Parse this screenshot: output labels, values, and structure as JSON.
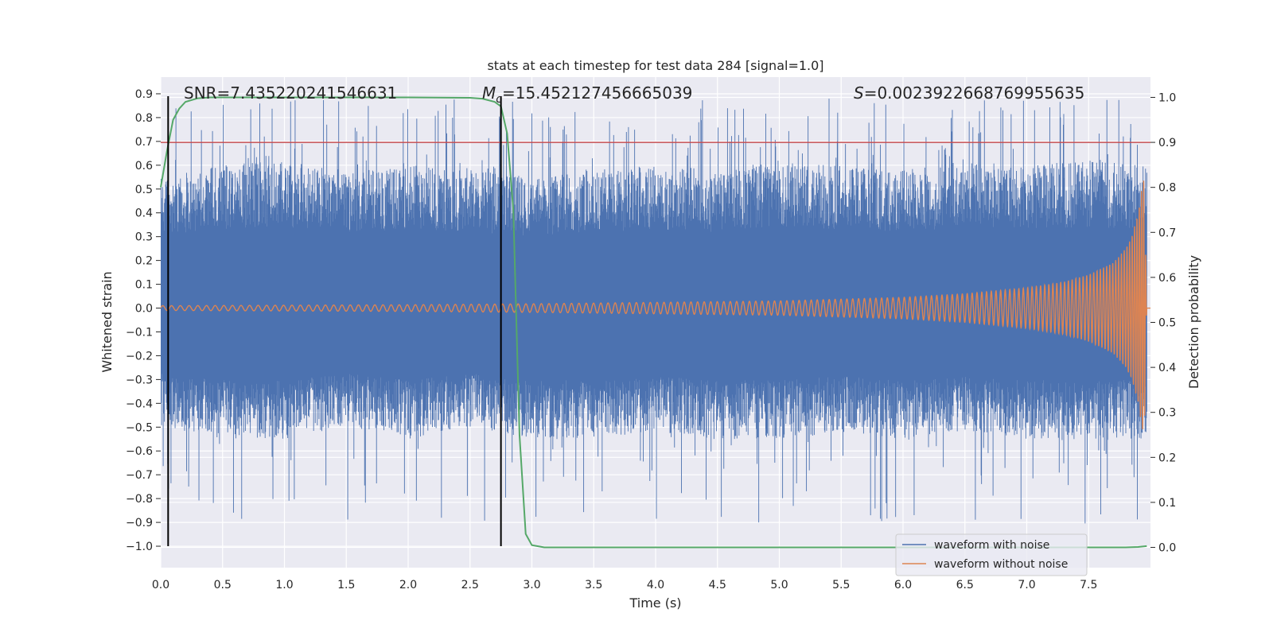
{
  "chart_data": {
    "type": "line",
    "title": "stats at each timestep for test data 284 [signal=1.0]",
    "xlabel": "Time (s)",
    "ylabel": "Whitened strain",
    "y2label": "Detection probability",
    "xlim": [
      0.0,
      8.0
    ],
    "ylim": [
      -1.09,
      0.97
    ],
    "y2lim": [
      -0.045,
      1.045
    ],
    "xticks": [
      "0.0",
      "0.5",
      "1.0",
      "1.5",
      "2.0",
      "2.5",
      "3.0",
      "3.5",
      "4.0",
      "4.5",
      "5.0",
      "5.5",
      "6.0",
      "6.5",
      "7.0",
      "7.5"
    ],
    "yticks": [
      "0.9",
      "0.8",
      "0.7",
      "0.6",
      "0.5",
      "0.4",
      "0.3",
      "0.2",
      "0.1",
      "0.0",
      "-0.1",
      "-0.2",
      "-0.3",
      "-0.4",
      "-0.5",
      "-0.6",
      "-0.7",
      "-0.8",
      "-0.9",
      "-1.0"
    ],
    "y2ticks": [
      "1.0",
      "0.9",
      "0.8",
      "0.7",
      "0.6",
      "0.5",
      "0.4",
      "0.3",
      "0.2",
      "0.1",
      "0.0"
    ],
    "grid": true,
    "legend_position": "lower-right",
    "annotations": {
      "snr": "SNR=7.435220241546631",
      "mc_symbol": "M",
      "mc_sub": "c",
      "mc_value": "=15.452127456665039",
      "s_symbol": "S",
      "s_value": "=0.0023922668769955635"
    },
    "vlines_x": [
      0.06,
      2.75
    ],
    "vline_ymin": -1.0,
    "vline_ymax": 0.89,
    "threshold_probability": 0.9,
    "series": [
      {
        "name": "waveform with noise",
        "color": "#4c72b0",
        "envelope_t": [
          0.0,
          0.5,
          1.0,
          1.5,
          2.0,
          2.5,
          3.0,
          3.5,
          4.0,
          4.5,
          5.0,
          5.5,
          6.0,
          6.5,
          7.0,
          7.5,
          7.97
        ],
        "envelope_upper": [
          0.55,
          0.6,
          0.62,
          0.58,
          0.6,
          0.58,
          0.55,
          0.58,
          0.6,
          0.58,
          0.62,
          0.6,
          0.58,
          0.62,
          0.6,
          0.62,
          0.6
        ],
        "envelope_lower": [
          -0.5,
          -0.55,
          -0.55,
          -0.5,
          -0.55,
          -0.5,
          -0.55,
          -0.55,
          -0.52,
          -0.55,
          -0.55,
          -0.52,
          -0.55,
          -0.52,
          -0.55,
          -0.55,
          -0.55
        ],
        "peak_range": [
          -1.0,
          0.88
        ]
      },
      {
        "name": "waveform without noise",
        "color": "#dd8452",
        "amplitude_t": [
          0.0,
          1.0,
          2.0,
          3.0,
          4.0,
          5.0,
          6.0,
          6.5,
          7.0,
          7.3,
          7.5,
          7.7,
          7.8,
          7.85,
          7.9,
          7.93,
          7.95,
          7.97
        ],
        "amplitude": [
          0.01,
          0.012,
          0.014,
          0.018,
          0.024,
          0.03,
          0.045,
          0.06,
          0.085,
          0.11,
          0.14,
          0.19,
          0.25,
          0.3,
          0.4,
          0.5,
          0.55,
          0.0
        ],
        "freq_t": [
          0.0,
          3.0,
          6.0,
          7.0,
          7.5,
          7.8,
          7.97
        ],
        "freq_hz": [
          14,
          16,
          22,
          28,
          35,
          45,
          60
        ]
      },
      {
        "name": "detection probability",
        "color": "#55a868",
        "axis": "right",
        "t": [
          0.0,
          0.05,
          0.1,
          0.15,
          0.2,
          0.3,
          0.4,
          0.6,
          1.0,
          2.0,
          2.5,
          2.6,
          2.7,
          2.75,
          2.8,
          2.85,
          2.9,
          2.95,
          3.0,
          3.1,
          3.5,
          5.0,
          7.0,
          7.8,
          7.9,
          7.97
        ],
        "p": [
          0.8,
          0.88,
          0.95,
          0.975,
          0.99,
          0.998,
          1.0,
          1.0,
          1.0,
          1.0,
          0.999,
          0.997,
          0.99,
          0.98,
          0.92,
          0.75,
          0.25,
          0.03,
          0.005,
          0.0,
          0.0,
          0.0,
          0.0,
          0.0,
          0.001,
          0.003
        ]
      }
    ]
  }
}
